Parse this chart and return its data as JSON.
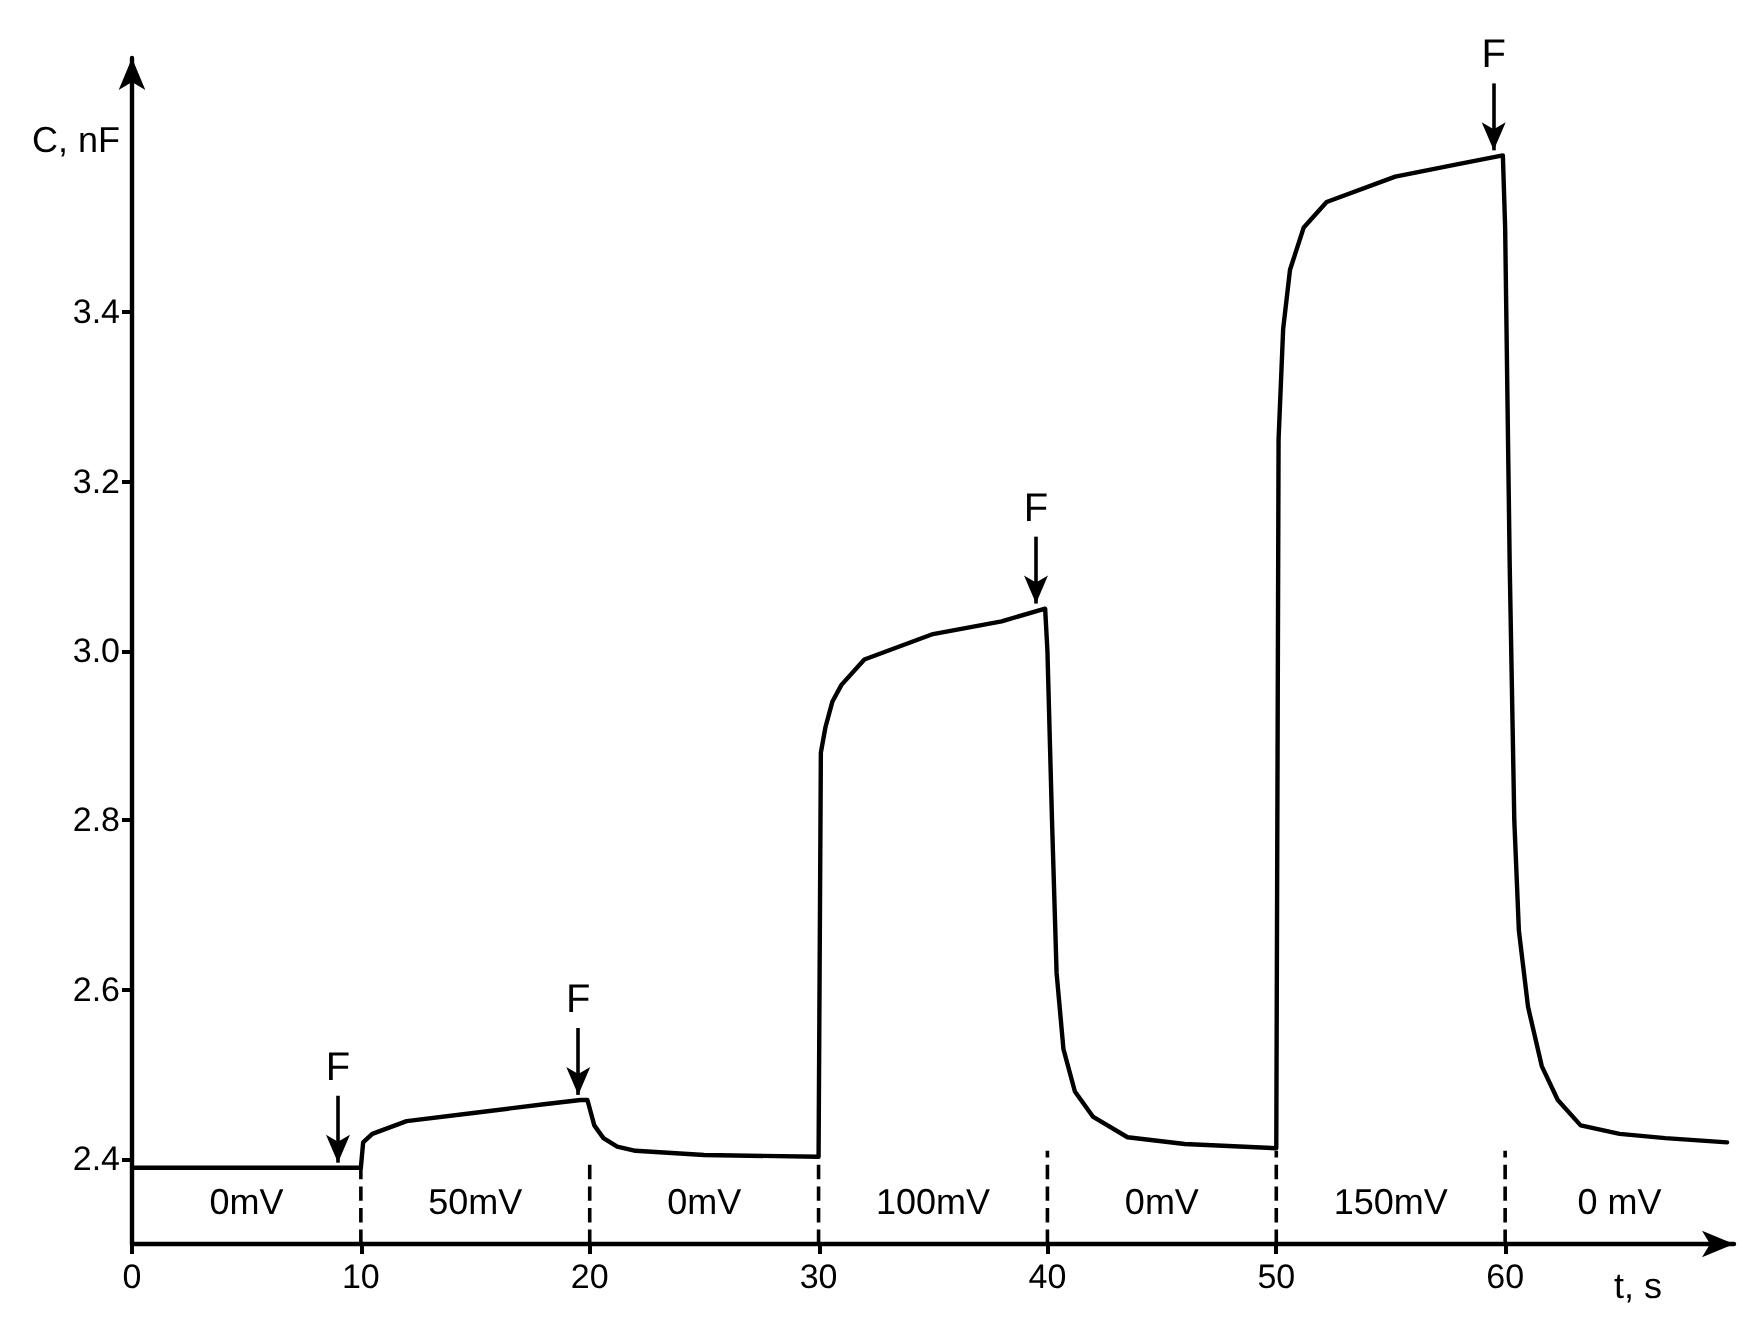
{
  "chart_data": {
    "type": "line",
    "xlabel": "t, s",
    "ylabel": "C, nF",
    "xlim": [
      0,
      70
    ],
    "ylim": [
      2.3,
      3.7
    ],
    "xticks": [
      0,
      10,
      20,
      30,
      40,
      50,
      60
    ],
    "yticks": [
      2.4,
      2.6,
      2.8,
      {
        "value": 3.0,
        "label": "3.0"
      },
      3.2,
      3.4
    ],
    "grid": false,
    "marker": "none",
    "line_style": "solid",
    "series": [
      {
        "color": "#000000",
        "x": [
          0,
          9.5,
          10,
          10.1,
          10.5,
          11,
          12,
          15,
          18,
          19.6,
          19.9,
          20.2,
          20.6,
          21.2,
          22,
          25,
          30,
          30.1,
          30.3,
          30.6,
          31,
          32,
          33,
          35,
          38,
          39.9,
          40,
          40.2,
          40.4,
          40.7,
          41.2,
          42,
          43.5,
          46,
          50,
          50.1,
          50.3,
          50.6,
          51.2,
          52.2,
          55.2,
          58,
          59.9,
          60,
          60.2,
          60.4,
          60.6,
          61,
          61.6,
          62.3,
          63.3,
          65,
          67,
          69.7
        ],
        "values": [
          2.39,
          2.39,
          2.39,
          2.42,
          2.43,
          2.435,
          2.445,
          2.455,
          2.465,
          2.47,
          2.47,
          2.44,
          2.425,
          2.415,
          2.41,
          2.405,
          2.403,
          2.88,
          2.91,
          2.94,
          2.96,
          2.99,
          3.0,
          3.02,
          3.035,
          3.05,
          3.0,
          2.8,
          2.62,
          2.53,
          2.48,
          2.45,
          2.426,
          2.418,
          2.413,
          3.25,
          3.38,
          3.45,
          3.5,
          3.53,
          3.56,
          3.575,
          3.585,
          3.5,
          3.1,
          2.8,
          2.67,
          2.58,
          2.51,
          2.47,
          2.44,
          2.43,
          2.425,
          2.42
        ]
      },
      {
        "color": "#000000",
        "line_style": "dashed",
        "x": [
          10,
          10
        ],
        "values": [
          2.3,
          2.39
        ]
      },
      {
        "color": "#000000",
        "line_style": "dashed",
        "x": [
          20,
          20
        ],
        "values": [
          2.3,
          2.4
        ]
      },
      {
        "color": "#000000",
        "line_style": "dashed",
        "x": [
          30,
          30
        ],
        "values": [
          2.3,
          2.4
        ]
      },
      {
        "color": "#000000",
        "line_style": "dashed",
        "x": [
          40,
          40
        ],
        "values": [
          2.3,
          2.41
        ]
      },
      {
        "color": "#000000",
        "line_style": "dashed",
        "x": [
          50,
          50
        ],
        "values": [
          2.3,
          2.41
        ]
      },
      {
        "color": "#000000",
        "line_style": "dashed",
        "x": [
          60,
          60
        ],
        "values": [
          2.3,
          2.41
        ]
      }
    ],
    "annotations": [
      {
        "text": "F",
        "x": 9,
        "y": 2.39
      },
      {
        "text": "F",
        "x": 19.5,
        "y": 2.47
      },
      {
        "text": "F",
        "x": 39.5,
        "y": 3.05
      },
      {
        "text": "F",
        "x": 59.5,
        "y": 3.585
      },
      "0mV",
      "50mV",
      "0mV",
      "100mV",
      "0mV",
      "150mV",
      "0 mV"
    ]
  }
}
